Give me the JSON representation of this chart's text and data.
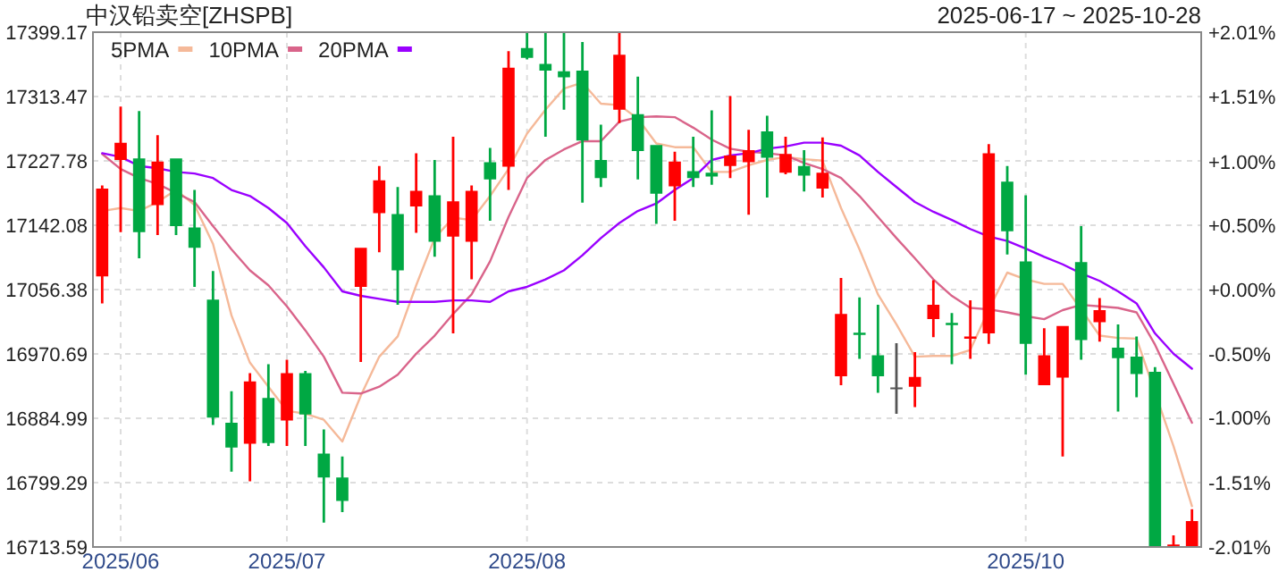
{
  "chart_data": {
    "type": "candlestick",
    "title": "中汉铅卖空[ZHSPB]",
    "subtitle": "2025-06-17 ~ 2025-10-28",
    "categories": [
      null,
      "2025/06",
      null,
      null,
      null,
      null,
      null,
      null,
      null,
      null,
      "2025/07",
      null,
      null,
      null,
      null,
      null,
      null,
      null,
      null,
      null,
      null,
      null,
      null,
      "2025/08",
      null,
      null,
      null,
      null,
      null,
      null,
      null,
      null,
      null,
      null,
      null,
      null,
      null,
      null,
      null,
      null,
      null,
      null,
      null,
      null,
      null,
      null,
      null,
      null,
      null,
      null,
      "2025/10",
      null,
      null,
      null,
      null,
      null,
      null,
      null,
      null,
      null
    ],
    "ohlc": [
      [
        17074,
        17195,
        17038,
        17191
      ],
      [
        17229,
        17300,
        17133,
        17252
      ],
      [
        17231,
        17294,
        17098,
        17133
      ],
      [
        17169,
        17262,
        17129,
        17227
      ],
      [
        17231,
        17231,
        17129,
        17141
      ],
      [
        17139,
        17189,
        17060,
        17112
      ],
      [
        17043,
        17081,
        16876,
        16886
      ],
      [
        16879,
        16921,
        16814,
        16846
      ],
      [
        16851,
        16945,
        16801,
        16934
      ],
      [
        16912,
        16957,
        16848,
        16852
      ],
      [
        16882,
        16963,
        16848,
        16945
      ],
      [
        16945,
        16948,
        16848,
        16890
      ],
      [
        16838,
        16870,
        16746,
        16806
      ],
      [
        16806,
        16834,
        16760,
        16775
      ],
      [
        17060,
        17112,
        16960,
        17112
      ],
      [
        17158,
        17221,
        17106,
        17202
      ],
      [
        17157,
        17193,
        17036,
        17082
      ],
      [
        17167,
        17238,
        17132,
        17188
      ],
      [
        17182,
        17229,
        17100,
        17120
      ],
      [
        17127,
        17260,
        16998,
        17174
      ],
      [
        17120,
        17195,
        17070,
        17188
      ],
      [
        17226,
        17245,
        17148,
        17203
      ],
      [
        17220,
        17374,
        17189,
        17352
      ],
      [
        17378,
        17399,
        17363,
        17365
      ],
      [
        17357,
        17399,
        17260,
        17348
      ],
      [
        17347,
        17399,
        17296,
        17339
      ],
      [
        17348,
        17386,
        17172,
        17255
      ],
      [
        17229,
        17276,
        17193,
        17205
      ],
      [
        17296,
        17399,
        17278,
        17369
      ],
      [
        17290,
        17340,
        17203,
        17241
      ],
      [
        17249,
        17249,
        17144,
        17184
      ],
      [
        17194,
        17240,
        17148,
        17227
      ],
      [
        17214,
        17260,
        17193,
        17205
      ],
      [
        17212,
        17295,
        17196,
        17207
      ],
      [
        17221,
        17314,
        17205,
        17235
      ],
      [
        17226,
        17269,
        17156,
        17242
      ],
      [
        17267,
        17288,
        17179,
        17232
      ],
      [
        17212,
        17260,
        17210,
        17237
      ],
      [
        17221,
        17242,
        17187,
        17208
      ],
      [
        17191,
        17259,
        17179,
        17212
      ],
      [
        16941,
        17072,
        16929,
        17024
      ],
      [
        16999,
        17046,
        16964,
        16996
      ],
      [
        16969,
        17036,
        16919,
        16941
      ],
      [
        16926,
        16985,
        16891,
        16926
      ],
      [
        16927,
        16973,
        16900,
        16940
      ],
      [
        17017,
        17069,
        16993,
        17036
      ],
      [
        17012,
        17025,
        16957,
        17009
      ],
      [
        16991,
        17042,
        16964,
        16994
      ],
      [
        16998,
        17250,
        16984,
        17238
      ],
      [
        17200,
        17221,
        17103,
        17134
      ],
      [
        17094,
        17182,
        16943,
        16984
      ],
      [
        16929,
        17005,
        16929,
        16969
      ],
      [
        16939,
        17008,
        16834,
        17008
      ],
      [
        17093,
        17141,
        16963,
        16989
      ],
      [
        17013,
        17045,
        16987,
        17029
      ],
      [
        16979,
        17010,
        16894,
        16965
      ],
      [
        16967,
        16994,
        16913,
        16944
      ],
      [
        16947,
        16953,
        16714,
        16714
      ],
      [
        16714,
        16729,
        16714,
        16717
      ],
      [
        16714,
        16764,
        16714,
        16748
      ]
    ],
    "colors": [
      "#ff0000",
      "#ff0000",
      "#00a843",
      "#ff0000",
      "#00a843",
      "#00a843",
      "#00a843",
      "#00a843",
      "#ff0000",
      "#00a843",
      "#ff0000",
      "#00a843",
      "#00a843",
      "#00a843",
      "#ff0000",
      "#ff0000",
      "#00a843",
      "#ff0000",
      "#00a843",
      "#ff0000",
      "#ff0000",
      "#00a843",
      "#ff0000",
      "#00a843",
      "#00a843",
      "#00a843",
      "#00a843",
      "#00a843",
      "#ff0000",
      "#00a843",
      "#00a843",
      "#ff0000",
      "#00a843",
      "#00a843",
      "#ff0000",
      "#ff0000",
      "#00a843",
      "#ff0000",
      "#00a843",
      "#ff0000",
      "#ff0000",
      "#00a843",
      "#00a843",
      "#555555",
      "#ff0000",
      "#ff0000",
      "#00a843",
      "#ff0000",
      "#ff0000",
      "#00a843",
      "#00a843",
      "#ff0000",
      "#ff0000",
      "#00a843",
      "#ff0000",
      "#00a843",
      "#00a843",
      "#00a843",
      "#ff0000",
      "#ff0000"
    ],
    "series": [
      {
        "type": "line",
        "name": "5PMA",
        "color": "#f5b999",
        "values": [
          17161,
          17165,
          17161,
          17173,
          17189,
          17169,
          17117,
          17022,
          16959,
          16927,
          16895,
          16891,
          16883,
          16854,
          16915,
          16967,
          16994,
          17062,
          17125,
          17152,
          17149,
          17181,
          17217,
          17264,
          17296,
          17324,
          17332,
          17304,
          17302,
          17284,
          17251,
          17246,
          17246,
          17213,
          17213,
          17222,
          17229,
          17233,
          17230,
          17228,
          17165,
          17110,
          17050,
          17010,
          16967,
          16968,
          16968,
          16976,
          17030,
          17079,
          17070,
          17064,
          17064,
          17030,
          16995,
          16992,
          16991,
          null,
          16848,
          16768
        ]
      },
      {
        "type": "line",
        "name": "10PMA",
        "color": "#d9648a",
        "values": [
          17237,
          17217,
          17205,
          17197,
          17185,
          17173,
          17141,
          17110,
          17082,
          17062,
          17034,
          17002,
          16967,
          16919,
          16918,
          16927,
          16943,
          16971,
          16995,
          17024,
          17050,
          17094,
          17153,
          17205,
          17229,
          17243,
          17254,
          17254,
          17280,
          17286,
          17287,
          17286,
          17272,
          17256,
          17244,
          17240,
          17238,
          17235,
          17225,
          17217,
          17205,
          17181,
          17153,
          17125,
          17098,
          17070,
          17048,
          17032,
          17030,
          17026,
          17021,
          17017,
          17029,
          17036,
          17034,
          17032,
          17026,
          16983,
          16931,
          16879
        ]
      },
      {
        "type": "line",
        "name": "20PMA",
        "color": "#9a00ff",
        "values": [
          17238,
          17233,
          17221,
          17218,
          17213,
          17211,
          17205,
          17189,
          17181,
          17165,
          17145,
          17114,
          17086,
          17054,
          17048,
          17044,
          17040,
          17040,
          17040,
          17042,
          17042,
          17040,
          17054,
          17060,
          17070,
          17082,
          17102,
          17125,
          17145,
          17161,
          17171,
          17189,
          17205,
          17229,
          17235,
          17238,
          17244,
          17247,
          17252,
          17252,
          17248,
          17235,
          17213,
          17193,
          17173,
          17160,
          17149,
          17137,
          17127,
          17121,
          17111,
          17100,
          17090,
          17078,
          17068,
          17054,
          17038,
          16998,
          16971,
          16951
        ]
      }
    ],
    "ylim": [
      16713.59,
      17399.17
    ],
    "yticks": [
      16713.59,
      16799.29,
      16884.99,
      16970.69,
      17056.38,
      17142.08,
      17227.78,
      17313.47,
      17399.17
    ],
    "y2lim": [
      -2.01,
      2.01
    ],
    "y2ticks": [
      {
        "value": -2.01,
        "label": "-2.01%"
      },
      {
        "value": -1.51,
        "label": "-1.51%"
      },
      {
        "value": -1.0,
        "label": "-1.00%"
      },
      {
        "value": -0.5,
        "label": "-0.50%"
      },
      {
        "value": 0,
        "label": "+0.00%"
      },
      {
        "value": 0.5,
        "label": "+0.50%"
      },
      {
        "value": 1.0,
        "label": "+1.00%"
      },
      {
        "value": 1.51,
        "label": "+1.51%"
      },
      {
        "value": 2.01,
        "label": "+2.01%"
      }
    ],
    "grid": true,
    "legend": "top left"
  }
}
